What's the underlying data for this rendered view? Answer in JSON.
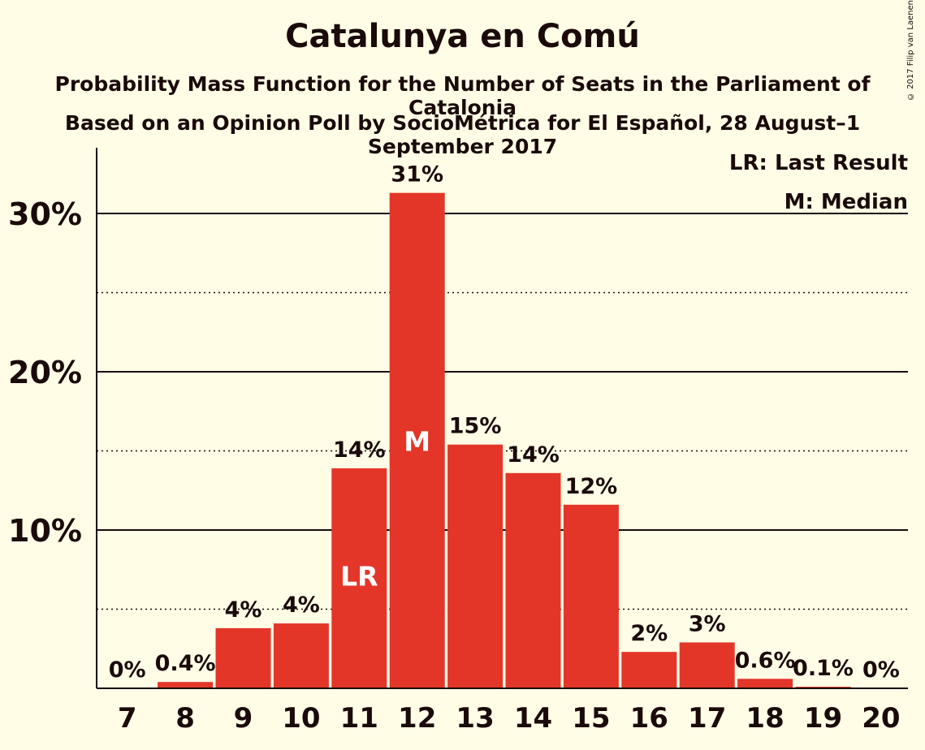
{
  "title": "Catalunya en Comú",
  "subtitle1": "Probability Mass Function for the Number of Seats in the Parliament of Catalonia",
  "subtitle2": "Based on an Opinion Poll by SocioMétrica for El Español, 28 August–1 September 2017",
  "copyright": "© 2017 Filip van Laenen",
  "legend": {
    "last_result": "LR: Last Result",
    "median": "M: Median"
  },
  "colors": {
    "background": "#fffde6",
    "bar": "#e33629",
    "text": "#1a0a0a"
  },
  "chart_data": {
    "type": "bar",
    "categories": [
      "7",
      "8",
      "9",
      "10",
      "11",
      "12",
      "13",
      "14",
      "15",
      "16",
      "17",
      "18",
      "19",
      "20"
    ],
    "values": [
      0,
      0.4,
      3.8,
      4.1,
      13.9,
      31.3,
      15.4,
      13.6,
      11.6,
      2.3,
      2.9,
      0.6,
      0.1,
      0
    ],
    "data_labels": [
      "0%",
      "0.4%",
      "4%",
      "4%",
      "14%",
      "31%",
      "15%",
      "14%",
      "12%",
      "2%",
      "3%",
      "0.6%",
      "0.1%",
      "0%"
    ],
    "bar_markers": {
      "11": "LR",
      "12": "M"
    },
    "yticks": [
      10,
      20,
      30
    ],
    "ytick_labels": [
      "10%",
      "20%",
      "30%"
    ],
    "dotted_gridlines": [
      5,
      15,
      25
    ],
    "ylim": [
      0,
      34
    ],
    "xlabel": "",
    "ylabel": ""
  }
}
